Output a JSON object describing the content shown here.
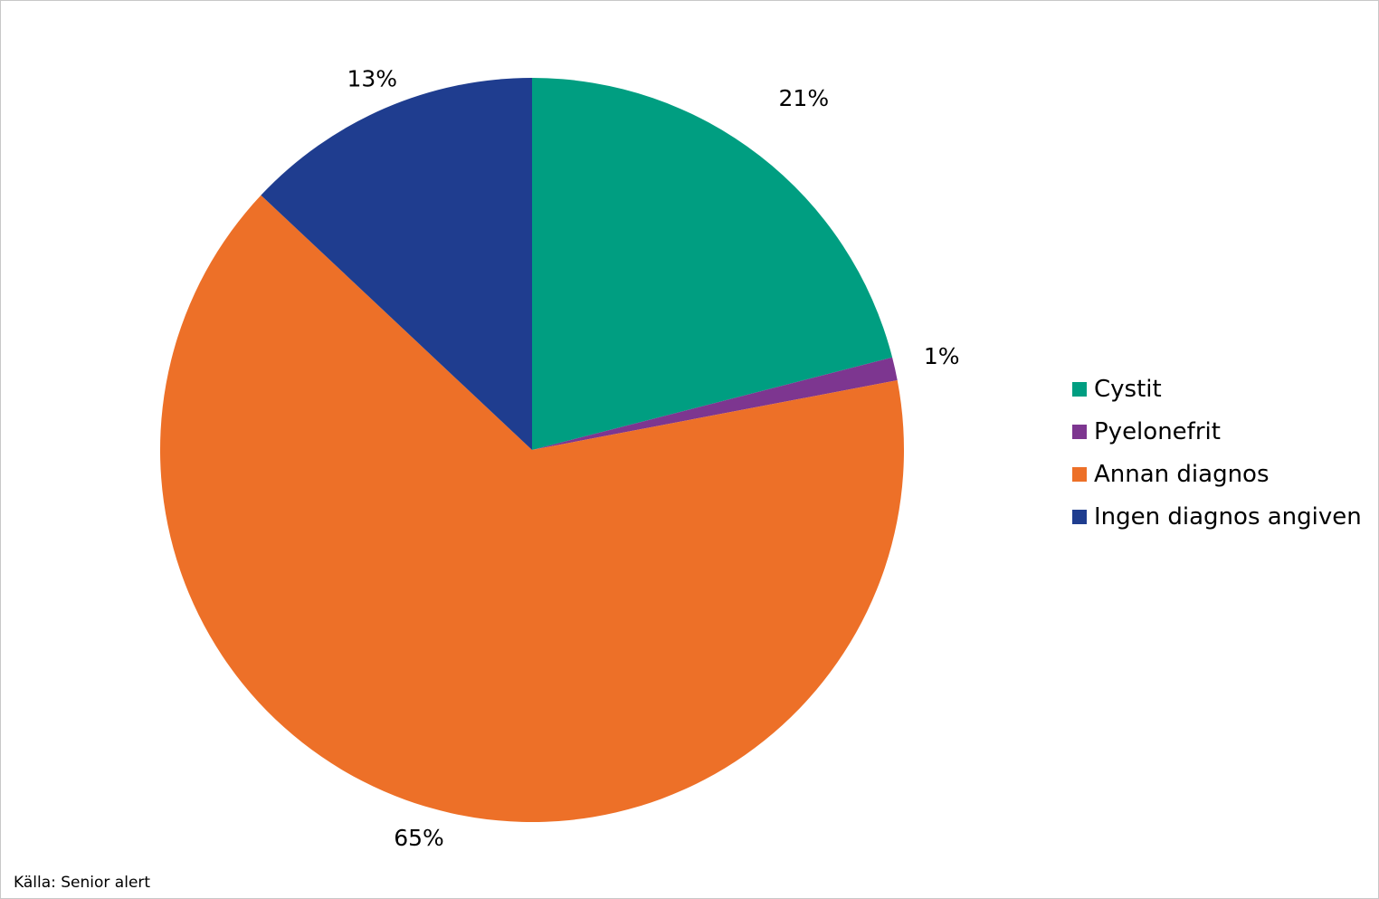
{
  "chart_data": {
    "type": "pie",
    "categories": [
      "Cystit",
      "Pyelonefrit",
      "Annan diagnos",
      "Ingen diagnos angiven"
    ],
    "values": [
      21,
      1,
      65,
      13
    ],
    "data_labels": [
      "21%",
      "1%",
      "65%",
      "13%"
    ],
    "colors": [
      "#009e81",
      "#7d3690",
      "#ed7028",
      "#1f3d8f"
    ],
    "start_angle": "12 o'clock",
    "direction": "clockwise",
    "legend_position": "right",
    "title": ""
  },
  "footer": {
    "source": "Källa: Senior alert"
  }
}
